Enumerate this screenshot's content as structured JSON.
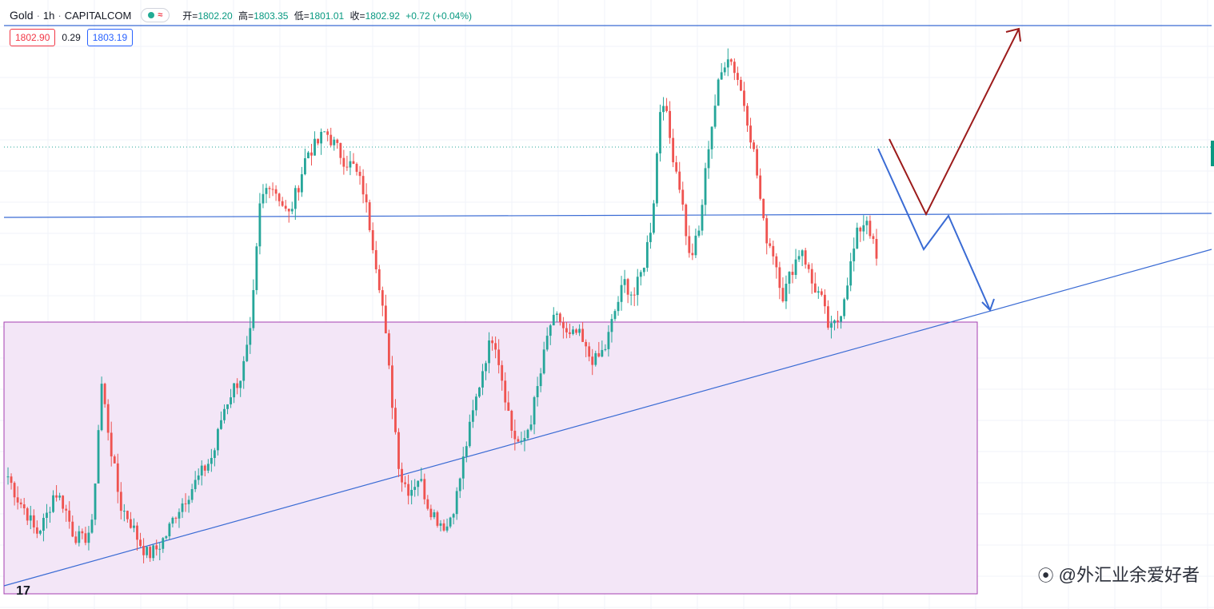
{
  "header": {
    "symbol": "Gold",
    "interval": "1h",
    "exchange": "CAPITALCOM",
    "separator": "·",
    "wave_icon": "≈",
    "ohlc": [
      {
        "label": "开=",
        "value": "1802.20"
      },
      {
        "label": "高=",
        "value": "1803.35"
      },
      {
        "label": "低=",
        "value": "1801.01"
      },
      {
        "label": "收=",
        "value": "1802.92"
      },
      {
        "label": "",
        "value": "+0.72 (+0.04%)"
      }
    ]
  },
  "quotes": {
    "sell": "1802.90",
    "spread": "0.29",
    "buy": "1803.19"
  },
  "logo_text": "17",
  "watermark": {
    "icon": "weibo-icon",
    "text": "@外汇业余爱好者"
  },
  "colors": {
    "up": "#26a69a",
    "down": "#ef5350",
    "trendline": "#3a6bd4",
    "zone_fill": "#f3e6f7",
    "zone_border": "#a43fb0",
    "arrow_red": "#9c1b1b",
    "arrow_blue": "#3a6bd4",
    "grid": "#f0f3fa"
  },
  "chart_data": {
    "type": "candlestick",
    "symbol": "Gold",
    "timeframe": "1h",
    "close_path": [
      1776,
      1773,
      1771,
      1768,
      1770,
      1774,
      1772,
      1768,
      1767,
      1769,
      1789,
      1780,
      1772,
      1770,
      1767,
      1765,
      1766,
      1768,
      1771,
      1773,
      1775,
      1777,
      1779,
      1785,
      1788,
      1790,
      1796,
      1814,
      1817,
      1815,
      1812,
      1816,
      1821,
      1822,
      1824,
      1822,
      1820,
      1819,
      1816,
      1809,
      1801,
      1788,
      1776,
      1774,
      1776,
      1772,
      1770,
      1769,
      1773,
      1780,
      1786,
      1792,
      1796,
      1789,
      1782,
      1780,
      1784,
      1790,
      1797,
      1798,
      1795,
      1796,
      1793,
      1792,
      1794,
      1799,
      1803,
      1801,
      1805,
      1812,
      1830,
      1822,
      1816,
      1806,
      1810,
      1822,
      1830,
      1835,
      1832,
      1827,
      1820,
      1810,
      1807,
      1801,
      1805,
      1808,
      1803,
      1801,
      1796,
      1798,
      1804,
      1810,
      1812,
      1806
    ],
    "y_range_estimated": [
      1760,
      1840
    ],
    "annotations": {
      "resistance_line": "horizontal trendline",
      "rising_trendline": "ascending support",
      "demand_zone": "shaded rectangle",
      "scenario_red": "dip then rally",
      "scenario_blue": "double dip to trendline"
    }
  }
}
